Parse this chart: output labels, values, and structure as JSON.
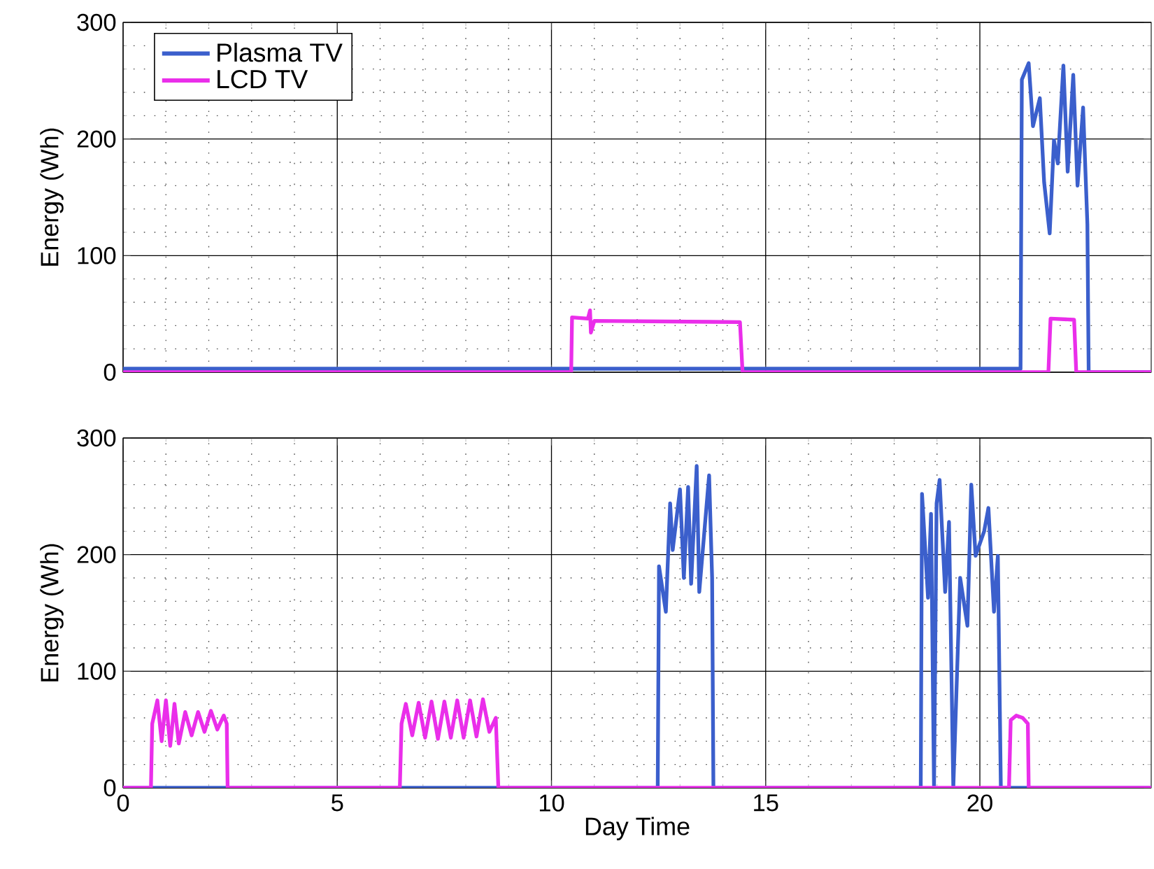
{
  "chart_data": [
    {
      "type": "line",
      "ylabel": "Energy (Wh)",
      "xlim": [
        0,
        24
      ],
      "ylim": [
        0,
        300
      ],
      "xticks": [
        0,
        5,
        10,
        15,
        20
      ],
      "yticks": [
        0,
        100,
        200,
        300
      ],
      "tick_labels": "y",
      "grid": true,
      "legend": "top left",
      "series": [
        {
          "name": "Plasma TV",
          "color": "#3b5fcc",
          "x": [
            0,
            20.95,
            20.98,
            21.14,
            21.24,
            21.4,
            21.5,
            21.63,
            21.73,
            21.82,
            21.95,
            22.05,
            22.18,
            22.28,
            22.41,
            22.51,
            22.54,
            24
          ],
          "values": [
            3,
            3,
            251,
            265,
            211,
            235,
            163,
            119,
            199,
            179,
            263,
            172,
            255,
            160,
            227,
            127,
            0,
            0
          ]
        },
        {
          "name": "LCD TV",
          "color": "#ea2eea",
          "x": [
            0,
            10.46,
            10.48,
            10.85,
            10.9,
            10.92,
            11.0,
            14.4,
            14.46,
            21.6,
            21.65,
            22.2,
            22.25,
            24
          ],
          "values": [
            0,
            0,
            47,
            46,
            53,
            34,
            44,
            43,
            0,
            0,
            46,
            45,
            0,
            0
          ]
        }
      ]
    },
    {
      "type": "line",
      "xlabel": "Day Time",
      "ylabel": "Energy (Wh)",
      "xlim": [
        0,
        24
      ],
      "ylim": [
        0,
        300
      ],
      "xticks": [
        0,
        5,
        10,
        15,
        20
      ],
      "yticks": [
        0,
        100,
        200,
        300
      ],
      "grid": true,
      "series": [
        {
          "color": "#3b5fcc",
          "x": [
            0,
            12.48,
            12.51,
            12.67,
            12.77,
            12.83,
            13.0,
            13.09,
            13.19,
            13.26,
            13.39,
            13.45,
            13.68,
            13.75,
            13.78,
            18.62,
            18.65,
            18.79,
            18.86,
            18.93,
            18.99,
            19.06,
            19.19,
            19.28,
            19.38,
            19.54,
            19.71,
            19.8,
            19.9,
            20.1,
            20.2,
            20.33,
            20.42,
            20.49,
            24
          ],
          "values": [
            0,
            0,
            190,
            151,
            244,
            204,
            256,
            180,
            258,
            175,
            276,
            168,
            268,
            180,
            0,
            0,
            252,
            163,
            235,
            0,
            244,
            264,
            168,
            228,
            0,
            180,
            139,
            260,
            199,
            220,
            240,
            151,
            199,
            0,
            0
          ]
        },
        {
          "color": "#ea2eea",
          "x": [
            0,
            0.65,
            0.68,
            0.8,
            0.9,
            1.0,
            1.1,
            1.2,
            1.3,
            1.45,
            1.6,
            1.75,
            1.9,
            2.05,
            2.2,
            2.35,
            2.42,
            2.44,
            6.46,
            6.5,
            6.6,
            6.75,
            6.9,
            7.05,
            7.2,
            7.35,
            7.5,
            7.65,
            7.8,
            7.95,
            8.1,
            8.25,
            8.4,
            8.55,
            8.7,
            8.76,
            20.68,
            20.72,
            20.85,
            21.0,
            21.12,
            21.14,
            24
          ],
          "values": [
            0,
            0,
            55,
            75,
            40,
            75,
            36,
            72,
            38,
            65,
            45,
            65,
            48,
            66,
            50,
            62,
            55,
            0,
            0,
            55,
            72,
            45,
            73,
            43,
            74,
            42,
            74,
            43,
            75,
            43,
            75,
            44,
            76,
            48,
            60,
            0,
            0,
            58,
            62,
            60,
            55,
            0,
            0
          ]
        }
      ]
    }
  ]
}
